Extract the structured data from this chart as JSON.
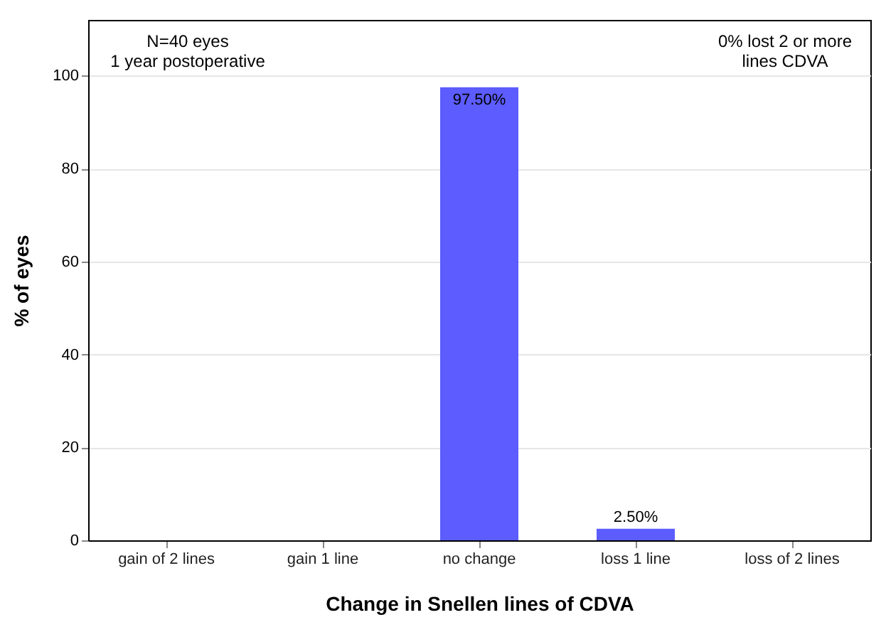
{
  "chart_data": {
    "type": "bar",
    "xlabel": "Change in Snellen lines of CDVA",
    "ylabel": "% of eyes",
    "categories": [
      "gain of 2 lines",
      "gain 1 line",
      "no change",
      "loss 1 line",
      "loss of 2 lines"
    ],
    "values": [
      0,
      0,
      97.5,
      2.5,
      0
    ],
    "value_labels": [
      null,
      null,
      "97.50%",
      "2.50%",
      null
    ],
    "color": "#5c5cff",
    "ylim": [
      0,
      112
    ],
    "yticks": [
      0,
      20,
      40,
      60,
      80,
      100
    ],
    "grid": "y",
    "annotations": [
      "N=40 eyes\n1 year postoperative",
      "0% lost 2 or more\nlines CDVA"
    ]
  }
}
